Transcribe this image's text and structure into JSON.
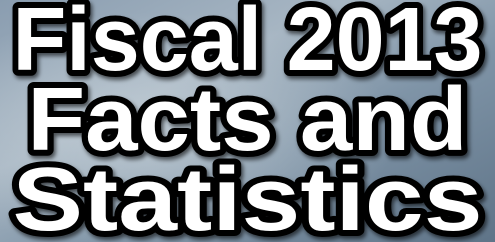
{
  "title": {
    "lines": [
      "Fiscal 2013",
      "Facts and",
      "Statistics"
    ]
  }
}
